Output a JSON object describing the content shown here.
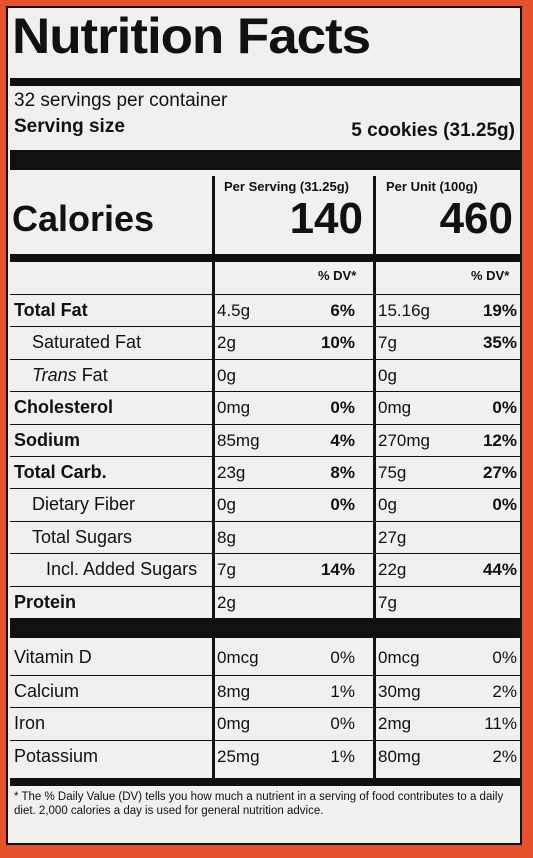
{
  "title": "Nutrition Facts",
  "servings_per_container": "32 servings per container",
  "serving_size_label": "Serving size",
  "serving_size_value": "5 cookies (31.25g)",
  "col_serving_header": "Per Serving (31.25g)",
  "col_unit_header": "Per Unit (100g)",
  "calories_label": "Calories",
  "calories_serving": "140",
  "calories_unit": "460",
  "dv_header": "% DV*",
  "nutrients": [
    {
      "label": "Total Fat",
      "bold": true,
      "indent": 0,
      "s_amt": "4.5g",
      "s_dv": "6%",
      "u_amt": "15.16g",
      "u_dv": "19%"
    },
    {
      "label": "Saturated Fat",
      "bold": false,
      "indent": 1,
      "s_amt": "2g",
      "s_dv": "10%",
      "u_amt": "7g",
      "u_dv": "35%"
    },
    {
      "label": "Trans Fat",
      "bold": false,
      "indent": 1,
      "italic_prefix": "Trans",
      "s_amt": "0g",
      "s_dv": "",
      "u_amt": "0g",
      "u_dv": ""
    },
    {
      "label": "Cholesterol",
      "bold": true,
      "indent": 0,
      "s_amt": "0mg",
      "s_dv": "0%",
      "u_amt": "0mg",
      "u_dv": "0%"
    },
    {
      "label": "Sodium",
      "bold": true,
      "indent": 0,
      "s_amt": "85mg",
      "s_dv": "4%",
      "u_amt": "270mg",
      "u_dv": "12%"
    },
    {
      "label": "Total Carb.",
      "bold": true,
      "indent": 0,
      "s_amt": "23g",
      "s_dv": "8%",
      "u_amt": "75g",
      "u_dv": "27%"
    },
    {
      "label": "Dietary Fiber",
      "bold": false,
      "indent": 1,
      "s_amt": "0g",
      "s_dv": "0%",
      "u_amt": "0g",
      "u_dv": "0%"
    },
    {
      "label": "Total Sugars",
      "bold": false,
      "indent": 1,
      "s_amt": "8g",
      "s_dv": "",
      "u_amt": "27g",
      "u_dv": ""
    },
    {
      "label": "Incl. Added Sugars",
      "bold": false,
      "indent": 2,
      "s_amt": "7g",
      "s_dv": "14%",
      "u_amt": "22g",
      "u_dv": "44%"
    },
    {
      "label": "Protein",
      "bold": true,
      "indent": 0,
      "s_amt": "2g",
      "s_dv": "",
      "u_amt": "7g",
      "u_dv": ""
    }
  ],
  "vitamins": [
    {
      "label": "Vitamin D",
      "s_amt": "0mcg",
      "s_dv": "0%",
      "u_amt": "0mcg",
      "u_dv": "0%"
    },
    {
      "label": "Calcium",
      "s_amt": "8mg",
      "s_dv": "1%",
      "u_amt": "30mg",
      "u_dv": "2%"
    },
    {
      "label": "Iron",
      "s_amt": "0mg",
      "s_dv": "0%",
      "u_amt": "2mg",
      "u_dv": "11%"
    },
    {
      "label": "Potassium",
      "s_amt": "25mg",
      "s_dv": "1%",
      "u_amt": "80mg",
      "u_dv": "2%"
    }
  ],
  "footnote": "* The % Daily Value (DV) tells you how much a nutrient in a serving of food contributes to a daily diet. 2,000 calories a day is used for general nutrition advice."
}
